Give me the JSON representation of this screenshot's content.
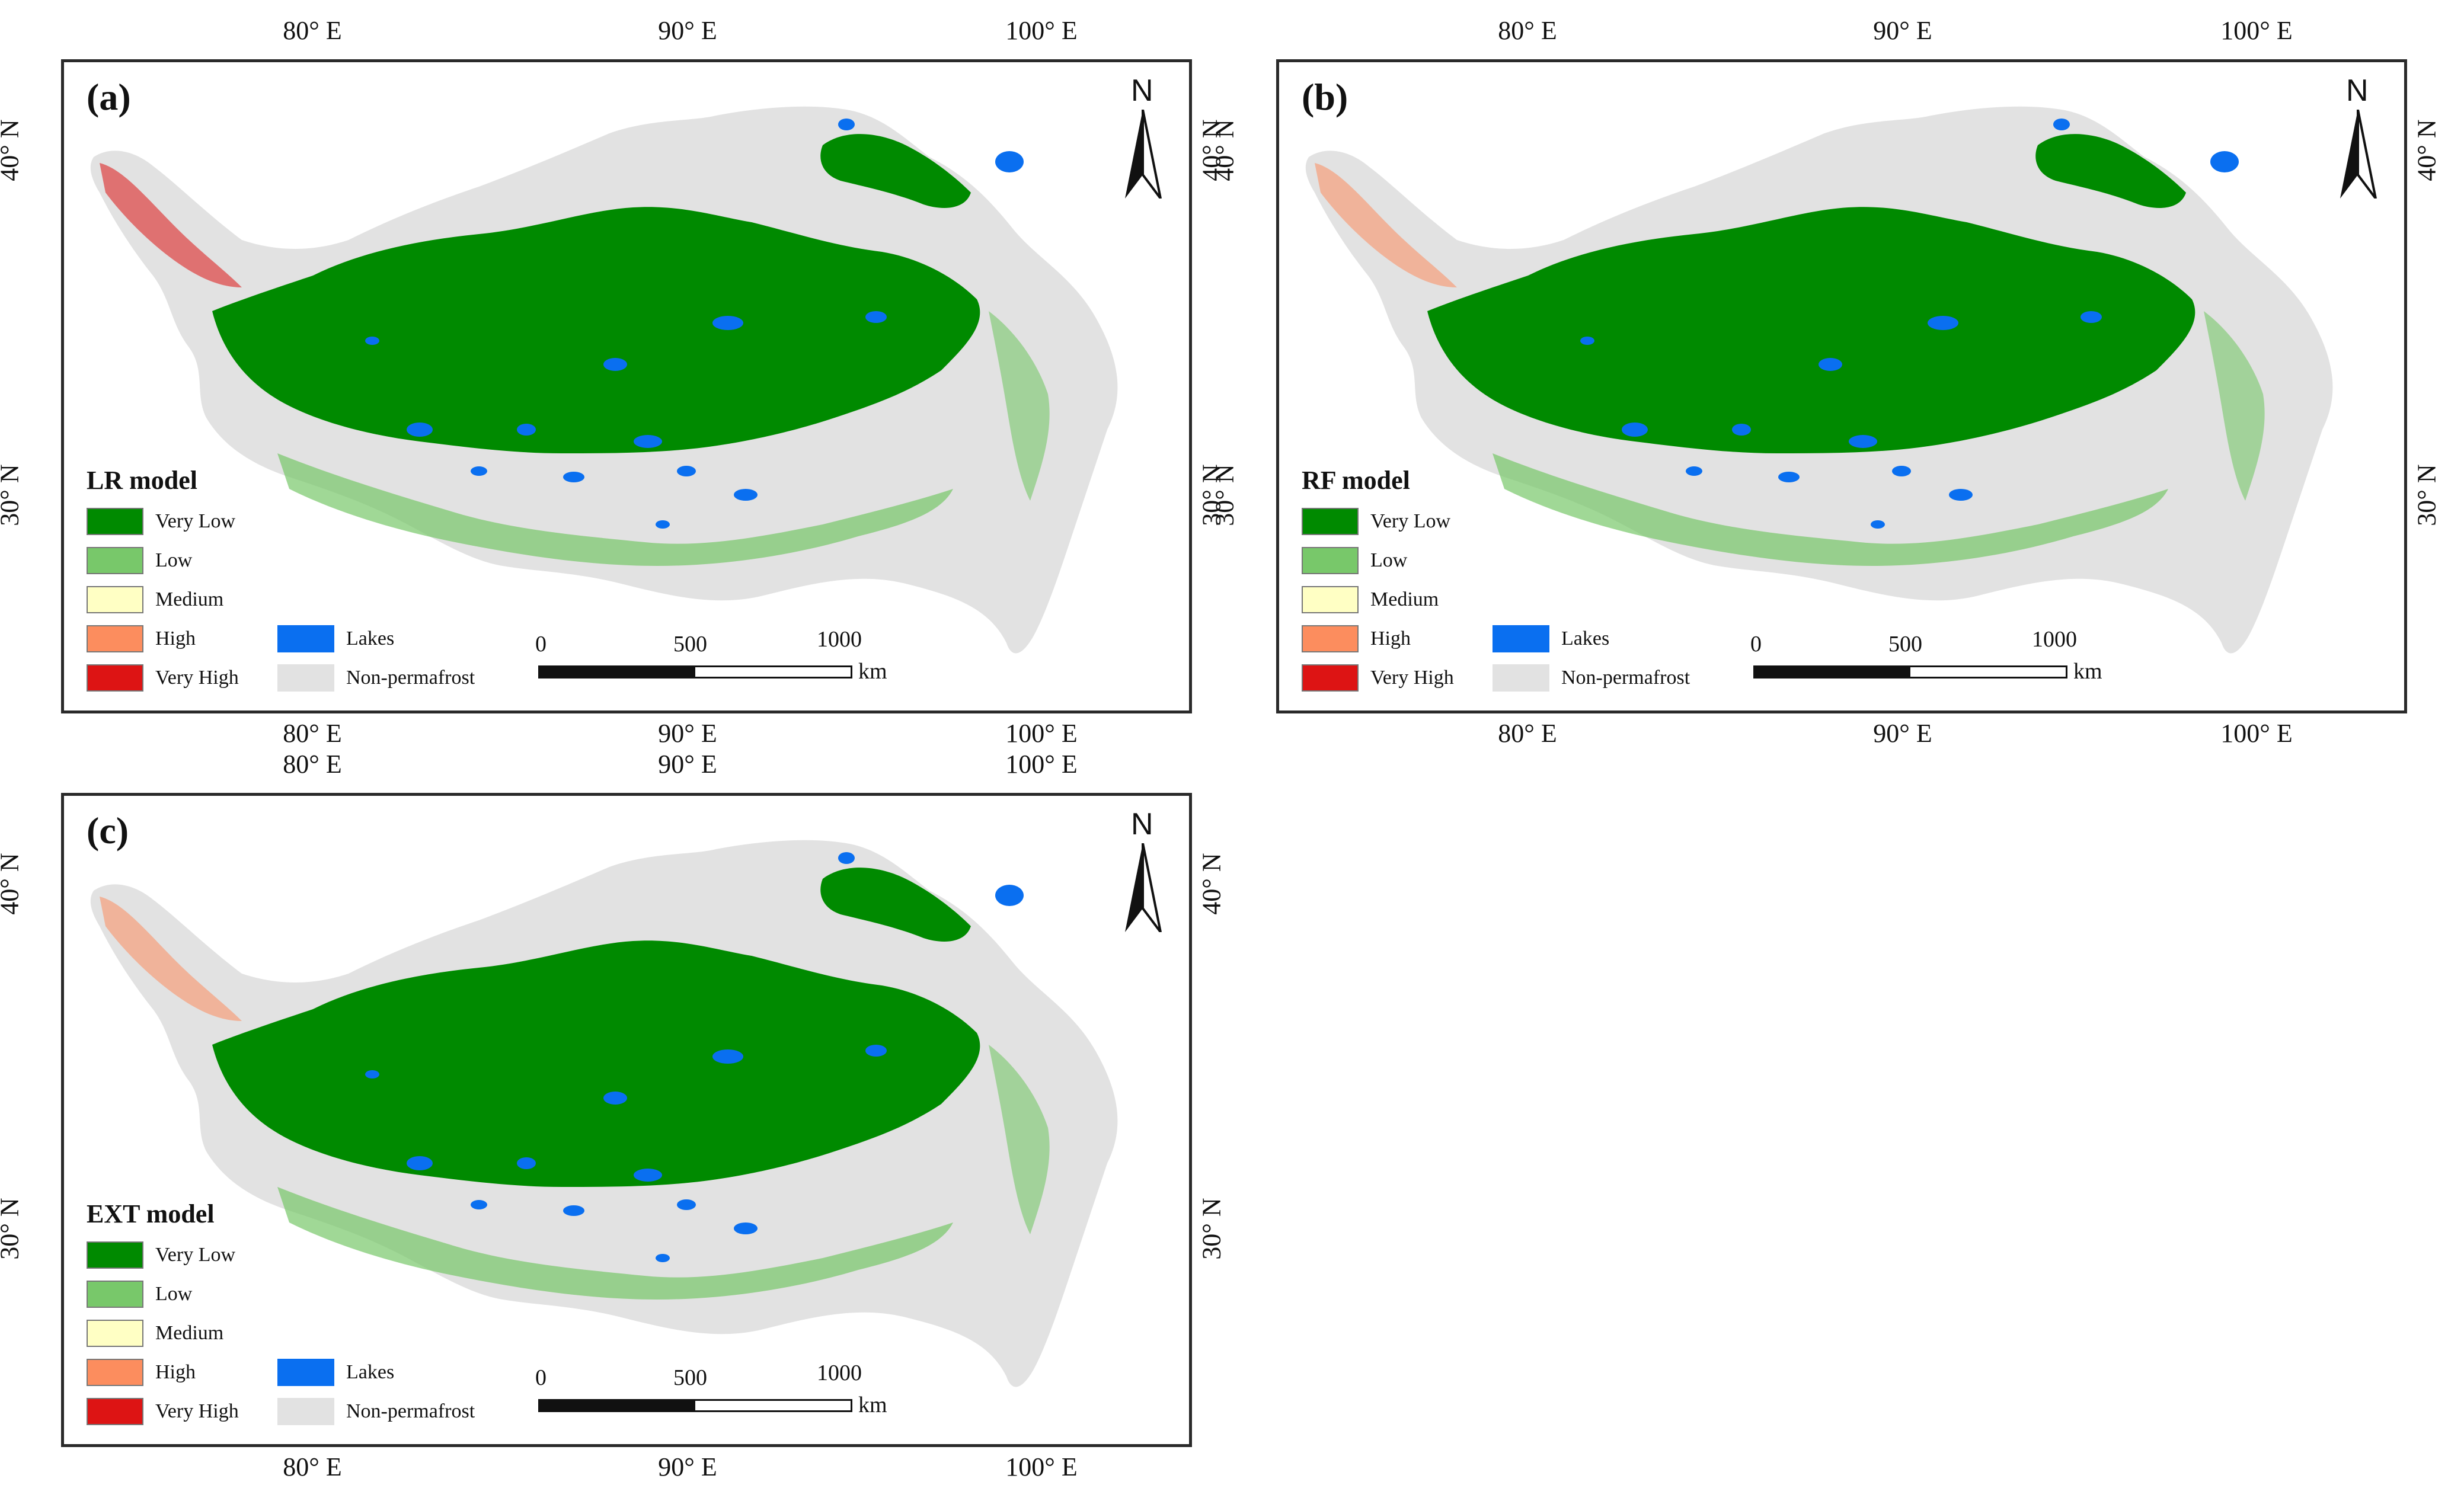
{
  "axes": {
    "lon_labels": [
      "80° E",
      "90° E",
      "100° E"
    ],
    "lat_labels": [
      "40° N",
      "30° N"
    ]
  },
  "north_arrow": {
    "letter": "N"
  },
  "scale_bar": {
    "labels": [
      "0",
      "500",
      "1000"
    ],
    "unit": "km"
  },
  "legend": {
    "classes": [
      {
        "label": "Very Low",
        "color": "#008a00"
      },
      {
        "label": "Low",
        "color": "#78c86a"
      },
      {
        "label": "Medium",
        "color": "#ffffc4"
      },
      {
        "label": "High",
        "color": "#fc8d5e"
      },
      {
        "label": "Very High",
        "color": "#dd1414"
      }
    ],
    "extras": [
      {
        "label": "Lakes",
        "color": "#0a6ff0"
      },
      {
        "label": "Non-permafrost",
        "color": "#e2e2e2"
      }
    ]
  },
  "panels": [
    {
      "id": "a",
      "label": "(a)",
      "model": "LR model"
    },
    {
      "id": "b",
      "label": "(b)",
      "model": "RF model"
    },
    {
      "id": "c",
      "label": "(c)",
      "model": "EXT model"
    }
  ],
  "colors": {
    "frame": "#2a2a2a",
    "region": "#e2e2e2",
    "lake": "#0a6ff0"
  }
}
